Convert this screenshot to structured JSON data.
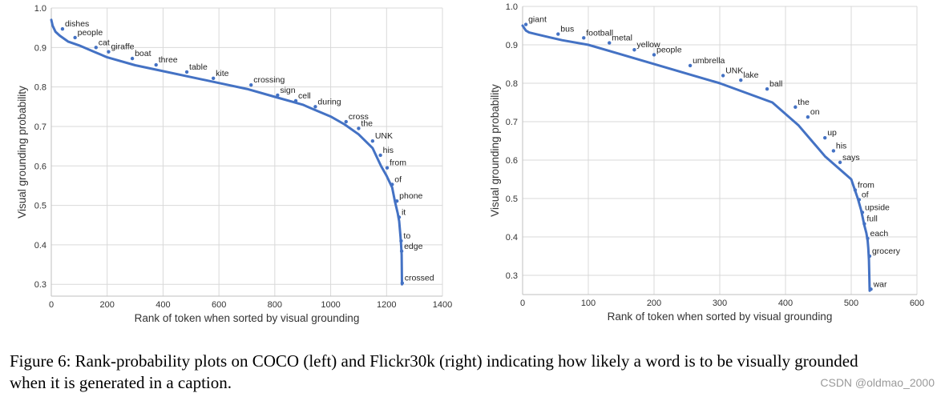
{
  "colors": {
    "line": "#4472c4",
    "grid": "#d9d9d9",
    "axis": "#333333"
  },
  "chart_data": [
    {
      "type": "line",
      "panel": "left",
      "title": "",
      "xlabel": "Rank of token when sorted by visual grounding",
      "ylabel": "Visual grounding probability",
      "xlim": [
        0,
        1400
      ],
      "ylim": [
        0.27,
        1.0
      ],
      "xticks": [
        0,
        200,
        400,
        600,
        800,
        1000,
        1200,
        1400
      ],
      "yticks": [
        0.3,
        0.4,
        0.5,
        0.6,
        0.7,
        0.8,
        0.9,
        1.0
      ],
      "tick_labels_x": [
        "0",
        "200",
        "400",
        "600",
        "800",
        "1000",
        "1200",
        "1400"
      ],
      "tick_labels_y": [
        "0.3",
        "0.4",
        "0.5",
        "0.6",
        "0.7",
        "0.8",
        "0.9",
        "1.0"
      ],
      "grid": true,
      "series": [
        {
          "name": "COCO",
          "x": [
            0,
            5,
            15,
            30,
            60,
            100,
            150,
            200,
            300,
            400,
            500,
            600,
            700,
            800,
            900,
            950,
            1000,
            1050,
            1100,
            1150,
            1180,
            1200,
            1220,
            1230,
            1240,
            1245,
            1250,
            1252,
            1254,
            1255
          ],
          "y": [
            0.97,
            0.955,
            0.94,
            0.93,
            0.915,
            0.905,
            0.89,
            0.875,
            0.855,
            0.84,
            0.825,
            0.81,
            0.795,
            0.775,
            0.755,
            0.74,
            0.725,
            0.705,
            0.68,
            0.645,
            0.6,
            0.575,
            0.545,
            0.51,
            0.48,
            0.46,
            0.42,
            0.4,
            0.375,
            0.3
          ]
        }
      ],
      "annotations": [
        {
          "text": "dishes",
          "x": 40,
          "y": 0.947
        },
        {
          "text": "people",
          "x": 85,
          "y": 0.925
        },
        {
          "text": "cat",
          "x": 160,
          "y": 0.9
        },
        {
          "text": "giraffe",
          "x": 205,
          "y": 0.889
        },
        {
          "text": "boat",
          "x": 290,
          "y": 0.872
        },
        {
          "text": "three",
          "x": 375,
          "y": 0.856
        },
        {
          "text": "table",
          "x": 485,
          "y": 0.838
        },
        {
          "text": "kite",
          "x": 580,
          "y": 0.822
        },
        {
          "text": "crossing",
          "x": 715,
          "y": 0.805
        },
        {
          "text": "sign",
          "x": 810,
          "y": 0.779
        },
        {
          "text": "cell",
          "x": 875,
          "y": 0.765
        },
        {
          "text": "during",
          "x": 945,
          "y": 0.75
        },
        {
          "text": "cross",
          "x": 1055,
          "y": 0.712
        },
        {
          "text": "the",
          "x": 1100,
          "y": 0.695
        },
        {
          "text": "UNK",
          "x": 1150,
          "y": 0.663
        },
        {
          "text": "his",
          "x": 1178,
          "y": 0.627
        },
        {
          "text": "from",
          "x": 1202,
          "y": 0.595
        },
        {
          "text": "of",
          "x": 1220,
          "y": 0.553
        },
        {
          "text": "phone",
          "x": 1237,
          "y": 0.511
        },
        {
          "text": "it",
          "x": 1245,
          "y": 0.47
        },
        {
          "text": "to",
          "x": 1252,
          "y": 0.41
        },
        {
          "text": "edge",
          "x": 1254,
          "y": 0.384
        },
        {
          "text": "crossed",
          "x": 1256,
          "y": 0.303
        }
      ]
    },
    {
      "type": "line",
      "panel": "right",
      "title": "",
      "xlabel": "Rank of token when sorted by visual grounding",
      "ylabel": "Visual grounding probability",
      "xlim": [
        0,
        600
      ],
      "ylim": [
        0.25,
        1.0
      ],
      "xticks": [
        0,
        100,
        200,
        300,
        400,
        500,
        600
      ],
      "yticks": [
        0.3,
        0.4,
        0.5,
        0.6,
        0.7,
        0.8,
        0.9,
        1.0
      ],
      "tick_labels_x": [
        "0",
        "100",
        "200",
        "300",
        "400",
        "500",
        "600"
      ],
      "tick_labels_y": [
        "0.3",
        "0.4",
        "0.5",
        "0.6",
        "0.7",
        "0.8",
        "0.9",
        "1.0"
      ],
      "grid": true,
      "series": [
        {
          "name": "Flickr30k",
          "x": [
            0,
            2,
            5,
            10,
            20,
            40,
            60,
            100,
            140,
            180,
            220,
            260,
            300,
            340,
            380,
            400,
            420,
            440,
            460,
            480,
            500,
            510,
            515,
            520,
            523,
            525,
            526,
            527,
            528
          ],
          "y": [
            0.95,
            0.945,
            0.937,
            0.932,
            0.928,
            0.92,
            0.912,
            0.9,
            0.88,
            0.86,
            0.84,
            0.82,
            0.8,
            0.775,
            0.75,
            0.72,
            0.69,
            0.65,
            0.61,
            0.58,
            0.55,
            0.5,
            0.47,
            0.43,
            0.41,
            0.39,
            0.37,
            0.34,
            0.26
          ]
        }
      ],
      "annotations": [
        {
          "text": "giant",
          "x": 5,
          "y": 0.953
        },
        {
          "text": "bus",
          "x": 54,
          "y": 0.928
        },
        {
          "text": "football",
          "x": 93,
          "y": 0.918
        },
        {
          "text": "metal",
          "x": 132,
          "y": 0.905
        },
        {
          "text": "yellow",
          "x": 170,
          "y": 0.887
        },
        {
          "text": "people",
          "x": 200,
          "y": 0.874
        },
        {
          "text": "umbrella",
          "x": 255,
          "y": 0.846
        },
        {
          "text": "UNK",
          "x": 305,
          "y": 0.82
        },
        {
          "text": "lake",
          "x": 332,
          "y": 0.808
        },
        {
          "text": "ball",
          "x": 372,
          "y": 0.785
        },
        {
          "text": "the",
          "x": 415,
          "y": 0.738
        },
        {
          "text": "on",
          "x": 434,
          "y": 0.712
        },
        {
          "text": "up",
          "x": 460,
          "y": 0.658
        },
        {
          "text": "his",
          "x": 473,
          "y": 0.624
        },
        {
          "text": "says",
          "x": 483,
          "y": 0.594
        },
        {
          "text": "from",
          "x": 506,
          "y": 0.522
        },
        {
          "text": "of",
          "x": 512,
          "y": 0.497
        },
        {
          "text": "upside",
          "x": 517,
          "y": 0.464
        },
        {
          "text": "full",
          "x": 520,
          "y": 0.434
        },
        {
          "text": "each",
          "x": 525,
          "y": 0.396
        },
        {
          "text": "grocery",
          "x": 528,
          "y": 0.35
        },
        {
          "text": "war",
          "x": 530,
          "y": 0.264
        }
      ]
    }
  ],
  "caption": {
    "line1": "Figure 6: Rank-probability plots on COCO (left) and Flickr30k (right) indicating how likely a word is to be visually grounded",
    "line2": "when it is generated in a caption."
  },
  "watermark": "CSDN @oldmao_2000"
}
